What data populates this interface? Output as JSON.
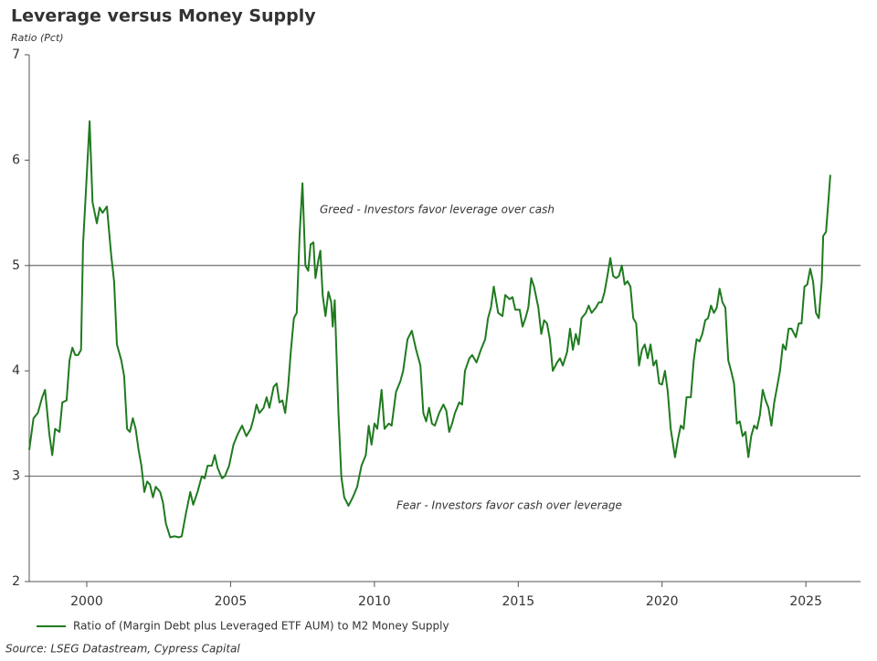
{
  "chart_data": {
    "type": "line",
    "title": "Leverage versus Money Supply",
    "subtitle": "Ratio (Pct)",
    "source": "Source: LSEG Datastream, Cypress Capital",
    "annotations": [
      "Greed - Investors favor leverage over cash",
      "Fear - Investors favor cash over leverage"
    ],
    "reference_lines": [
      5,
      3
    ],
    "xlim": [
      1998,
      2026.9
    ],
    "xticks": [
      2000,
      2005,
      2010,
      2015,
      2020,
      2025
    ],
    "ylim": [
      2,
      7
    ],
    "yticks": [
      2,
      3,
      4,
      5,
      6,
      7
    ],
    "legend": "bottom",
    "x": [
      1998.0,
      1998.15,
      1998.3,
      1998.45,
      1998.55,
      1998.7,
      1998.8,
      1998.9,
      1999.05,
      1999.15,
      1999.3,
      1999.4,
      1999.5,
      1999.6,
      1999.7,
      1999.8,
      1999.87,
      1999.95,
      2000.1,
      2000.2,
      2000.35,
      2000.45,
      2000.55,
      2000.7,
      2000.85,
      2000.95,
      2001.05,
      2001.2,
      2001.3,
      2001.4,
      2001.5,
      2001.6,
      2001.7,
      2001.8,
      2001.9,
      2002.0,
      2002.1,
      2002.2,
      2002.3,
      2002.4,
      2002.55,
      2002.65,
      2002.75,
      2002.9,
      2003.05,
      2003.2,
      2003.3,
      2003.45,
      2003.6,
      2003.7,
      2003.85,
      2004.0,
      2004.1,
      2004.2,
      2004.35,
      2004.45,
      2004.55,
      2004.7,
      2004.8,
      2004.95,
      2005.1,
      2005.25,
      2005.4,
      2005.55,
      2005.7,
      2005.8,
      2005.9,
      2006.0,
      2006.15,
      2006.25,
      2006.35,
      2006.5,
      2006.6,
      2006.7,
      2006.8,
      2006.9,
      2007.0,
      2007.1,
      2007.2,
      2007.3,
      2007.4,
      2007.5,
      2007.6,
      2007.7,
      2007.78,
      2007.88,
      2007.95,
      2008.05,
      2008.12,
      2008.2,
      2008.3,
      2008.4,
      2008.5,
      2008.55,
      2008.62,
      2008.75,
      2008.85,
      2008.95,
      2009.1,
      2009.25,
      2009.4,
      2009.55,
      2009.7,
      2009.8,
      2009.9,
      2010.0,
      2010.1,
      2010.25,
      2010.35,
      2010.5,
      2010.6,
      2010.75,
      2010.9,
      2011.0,
      2011.15,
      2011.3,
      2011.45,
      2011.6,
      2011.7,
      2011.8,
      2011.9,
      2012.0,
      2012.1,
      2012.25,
      2012.4,
      2012.5,
      2012.6,
      2012.7,
      2012.8,
      2012.95,
      2013.05,
      2013.15,
      2013.3,
      2013.4,
      2013.55,
      2013.7,
      2013.85,
      2013.95,
      2014.05,
      2014.15,
      2014.3,
      2014.45,
      2014.55,
      2014.7,
      2014.8,
      2014.9,
      2015.05,
      2015.15,
      2015.25,
      2015.35,
      2015.45,
      2015.55,
      2015.7,
      2015.8,
      2015.9,
      2016.0,
      2016.1,
      2016.2,
      2016.35,
      2016.45,
      2016.55,
      2016.7,
      2016.8,
      2016.9,
      2017.0,
      2017.1,
      2017.2,
      2017.35,
      2017.45,
      2017.55,
      2017.7,
      2017.8,
      2017.9,
      2018.0,
      2018.1,
      2018.2,
      2018.3,
      2018.4,
      2018.5,
      2018.6,
      2018.7,
      2018.8,
      2018.9,
      2019.0,
      2019.1,
      2019.2,
      2019.3,
      2019.4,
      2019.5,
      2019.6,
      2019.7,
      2019.8,
      2019.9,
      2020.0,
      2020.1,
      2020.2,
      2020.3,
      2020.45,
      2020.55,
      2020.65,
      2020.75,
      2020.85,
      2021.0,
      2021.1,
      2021.2,
      2021.3,
      2021.4,
      2021.5,
      2021.6,
      2021.7,
      2021.8,
      2021.9,
      2022.0,
      2022.1,
      2022.2,
      2022.3,
      2022.4,
      2022.5,
      2022.6,
      2022.7,
      2022.8,
      2022.9,
      2023.0,
      2023.1,
      2023.2,
      2023.3,
      2023.4,
      2023.5,
      2023.6,
      2023.7,
      2023.8,
      2023.9,
      2024.0,
      2024.1,
      2024.2,
      2024.3,
      2024.4,
      2024.5,
      2024.65,
      2024.75,
      2024.85,
      2024.95,
      2025.05,
      2025.15,
      2025.25,
      2025.35,
      2025.45,
      2025.55,
      2025.6,
      2025.7,
      2025.78,
      2025.85
    ],
    "series": [
      {
        "name": "Ratio of (Margin Debt plus Leveraged ETF AUM) to M2 Money Supply",
        "color": "#1f7a1f",
        "values": [
          3.25,
          3.55,
          3.6,
          3.75,
          3.82,
          3.4,
          3.2,
          3.45,
          3.42,
          3.7,
          3.72,
          4.1,
          4.22,
          4.15,
          4.15,
          4.2,
          5.2,
          5.6,
          6.37,
          5.6,
          5.4,
          5.55,
          5.5,
          5.56,
          5.1,
          4.85,
          4.25,
          4.1,
          3.95,
          3.45,
          3.42,
          3.55,
          3.45,
          3.25,
          3.1,
          2.85,
          2.95,
          2.92,
          2.8,
          2.9,
          2.85,
          2.75,
          2.55,
          2.42,
          2.43,
          2.42,
          2.43,
          2.65,
          2.85,
          2.73,
          2.85,
          3.0,
          2.98,
          3.1,
          3.1,
          3.2,
          3.08,
          2.98,
          3.0,
          3.1,
          3.3,
          3.4,
          3.48,
          3.38,
          3.45,
          3.55,
          3.68,
          3.6,
          3.65,
          3.75,
          3.65,
          3.85,
          3.88,
          3.7,
          3.72,
          3.6,
          3.85,
          4.2,
          4.5,
          4.55,
          5.3,
          5.78,
          5.0,
          4.95,
          5.2,
          5.22,
          4.88,
          5.05,
          5.14,
          4.72,
          4.52,
          4.75,
          4.65,
          4.42,
          4.67,
          3.6,
          3.0,
          2.8,
          2.72,
          2.8,
          2.9,
          3.1,
          3.2,
          3.48,
          3.3,
          3.5,
          3.45,
          3.82,
          3.45,
          3.5,
          3.48,
          3.8,
          3.9,
          4.0,
          4.3,
          4.38,
          4.2,
          4.05,
          3.6,
          3.52,
          3.65,
          3.5,
          3.48,
          3.6,
          3.68,
          3.62,
          3.42,
          3.5,
          3.6,
          3.7,
          3.68,
          4.0,
          4.12,
          4.15,
          4.08,
          4.2,
          4.3,
          4.5,
          4.6,
          4.8,
          4.55,
          4.52,
          4.72,
          4.68,
          4.7,
          4.58,
          4.58,
          4.42,
          4.5,
          4.6,
          4.88,
          4.8,
          4.6,
          4.35,
          4.48,
          4.45,
          4.3,
          4.0,
          4.08,
          4.12,
          4.05,
          4.18,
          4.4,
          4.2,
          4.35,
          4.25,
          4.5,
          4.55,
          4.62,
          4.55,
          4.6,
          4.65,
          4.65,
          4.75,
          4.9,
          5.07,
          4.9,
          4.88,
          4.9,
          5.0,
          4.82,
          4.85,
          4.8,
          4.5,
          4.45,
          4.05,
          4.2,
          4.25,
          4.12,
          4.25,
          4.05,
          4.1,
          3.88,
          3.87,
          4.0,
          3.8,
          3.45,
          3.18,
          3.35,
          3.48,
          3.45,
          3.75,
          3.75,
          4.1,
          4.3,
          4.28,
          4.35,
          4.48,
          4.5,
          4.62,
          4.55,
          4.6,
          4.78,
          4.65,
          4.6,
          4.1,
          4.0,
          3.88,
          3.5,
          3.52,
          3.38,
          3.42,
          3.18,
          3.38,
          3.48,
          3.45,
          3.58,
          3.82,
          3.72,
          3.65,
          3.48,
          3.7,
          3.85,
          4.0,
          4.25,
          4.2,
          4.4,
          4.4,
          4.32,
          4.45,
          4.45,
          4.8,
          4.82,
          4.97,
          4.85,
          4.55,
          4.5,
          4.85,
          5.28,
          5.32,
          5.6,
          5.86
        ]
      }
    ]
  }
}
